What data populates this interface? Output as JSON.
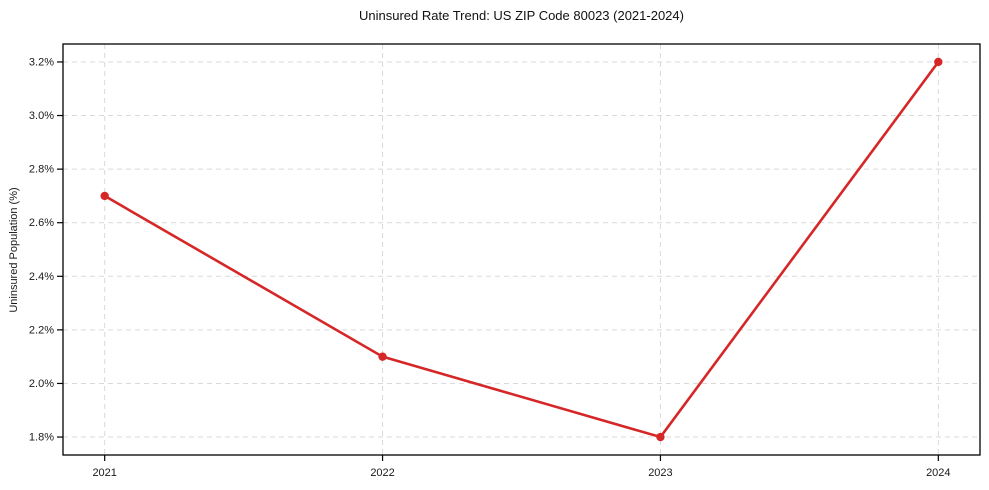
{
  "chart_data": {
    "type": "line",
    "title": "Uninsured Rate Trend: US ZIP Code 80023 (2021-2024)",
    "xlabel": "",
    "ylabel": "Uninsured Population (%)",
    "x": [
      2021,
      2022,
      2023,
      2024
    ],
    "x_tick_labels": [
      "2021",
      "2022",
      "2023",
      "2024"
    ],
    "series": [
      {
        "name": "Uninsured rate",
        "values": [
          2.7,
          2.1,
          1.8,
          3.2
        ]
      }
    ],
    "y_ticks": [
      1.8,
      2.0,
      2.2,
      2.4,
      2.6,
      2.8,
      3.0,
      3.2
    ],
    "y_tick_labels": [
      "1.8%",
      "2.0%",
      "2.2%",
      "2.4%",
      "2.6%",
      "2.8%",
      "3.0%",
      "3.2%"
    ],
    "xlim": [
      2020.85,
      2024.15
    ],
    "ylim": [
      1.733,
      3.267
    ],
    "grid": true,
    "legend": "none",
    "line_color": "#d62728",
    "marker": "circle",
    "grid_color": "#d9d9d9"
  }
}
